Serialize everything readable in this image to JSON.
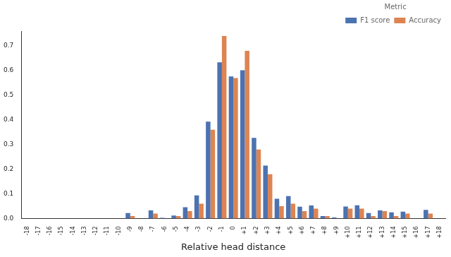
{
  "chart_data": {
    "type": "bar",
    "x_label": "Relative head distance",
    "legend_title": "Metric",
    "legend": "top-right",
    "grid": false,
    "categories": [
      "-18",
      "-17",
      "-16",
      "-15",
      "-14",
      "-13",
      "-12",
      "-11",
      "-10",
      "-9",
      "-8",
      "-7",
      "-6",
      "-5",
      "-4",
      "-3",
      "-2",
      "-1",
      "0",
      "+1",
      "+2",
      "+3",
      "+4",
      "+5",
      "+6",
      "+7",
      "+8",
      "+9",
      "+10",
      "+11",
      "+12",
      "+13",
      "+14",
      "+15",
      "+16",
      "+17",
      "+18"
    ],
    "series": [
      {
        "name": "F1 score",
        "color": "#4c72b0",
        "values": [
          0,
          0,
          0,
          0,
          0,
          0,
          0,
          0,
          0,
          0.022,
          0,
          0.033,
          0.003,
          0.012,
          0.046,
          0.094,
          0.393,
          0.633,
          0.576,
          0.601,
          0.327,
          0.215,
          0.08,
          0.091,
          0.048,
          0.053,
          0.01,
          0.004,
          0.049,
          0.054,
          0.022,
          0.033,
          0.025,
          0.028,
          0,
          0.035,
          0
        ]
      },
      {
        "name": "Accuracy",
        "color": "#dd8452",
        "values": [
          0,
          0,
          0,
          0,
          0,
          0,
          0,
          0,
          0,
          0.01,
          0,
          0.02,
          0,
          0.01,
          0.03,
          0.06,
          0.36,
          0.74,
          0.57,
          0.68,
          0.28,
          0.18,
          0.05,
          0.06,
          0.03,
          0.04,
          0.01,
          0,
          0.04,
          0.04,
          0.01,
          0.03,
          0.01,
          0.02,
          0,
          0.02,
          0
        ]
      }
    ],
    "ylim": [
      0,
      0.76
    ],
    "yticks": [
      {
        "value": 0,
        "label": "0.0"
      },
      0.1,
      0.2,
      0.3,
      0.4,
      0.5,
      0.6,
      0.7
    ]
  }
}
